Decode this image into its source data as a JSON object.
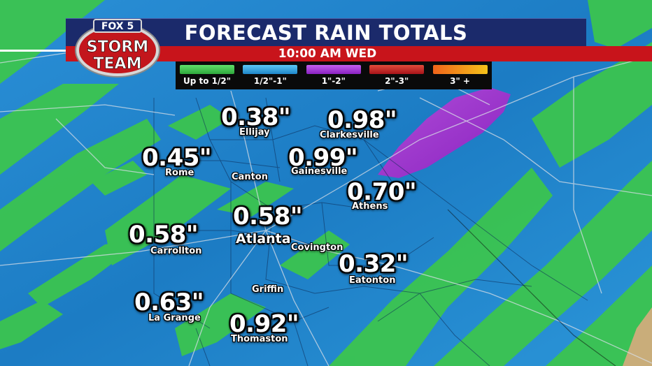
{
  "header": {
    "title": "FORECAST RAIN TOTALS",
    "time": "10:00 AM  WED"
  },
  "logo": {
    "brand": "FOX 5",
    "line1": "STORM",
    "line2": "TEAM"
  },
  "legend": [
    {
      "label": "Up to 1/2\"",
      "color": "#3fc74a"
    },
    {
      "label": "1/2\"-1\"",
      "color": "#2ba4e8"
    },
    {
      "label": "1\"-2\"",
      "color": "#9a2ec9"
    },
    {
      "label": "2\"-3\"",
      "color": "#c42020"
    },
    {
      "label": "3\" +",
      "color": "#f08a1a"
    }
  ],
  "locations": [
    {
      "city": "Ellijay",
      "amount": "0.38\""
    },
    {
      "city": "Clarkesville",
      "amount": "0.98\""
    },
    {
      "city": "Rome",
      "amount": "0.45\""
    },
    {
      "city": "Canton",
      "amount": ""
    },
    {
      "city": "Gainesville",
      "amount": "0.99\""
    },
    {
      "city": "Athens",
      "amount": "0.70\""
    },
    {
      "city": "Atlanta",
      "amount": "0.58\""
    },
    {
      "city": "Carrollton",
      "amount": "0.58\""
    },
    {
      "city": "Covington",
      "amount": ""
    },
    {
      "city": "Eatonton",
      "amount": "0.32\""
    },
    {
      "city": "Griffin",
      "amount": ""
    },
    {
      "city": "La Grange",
      "amount": "0.63\""
    },
    {
      "city": "Thomaston",
      "amount": "0.92\""
    }
  ]
}
